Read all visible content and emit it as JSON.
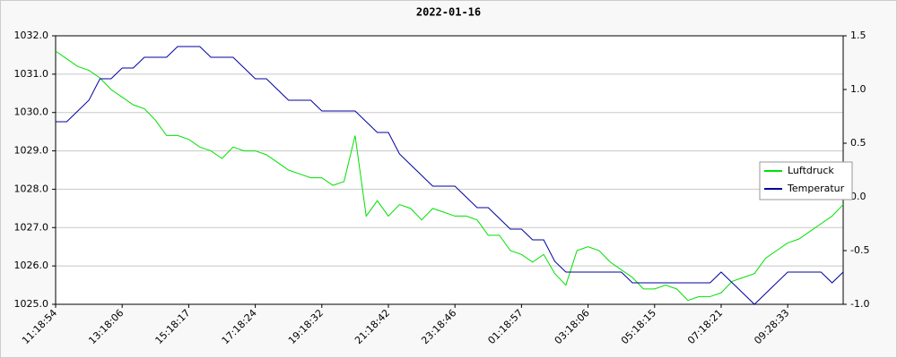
{
  "chart_data": {
    "type": "line",
    "title": "2022-01-16",
    "categories": [
      "11:18:54",
      null,
      null,
      null,
      null,
      null,
      "13:18:06",
      null,
      null,
      null,
      null,
      null,
      "15:18:17",
      null,
      null,
      null,
      null,
      null,
      "17:18:24",
      null,
      null,
      null,
      null,
      null,
      "19:18:32",
      null,
      null,
      null,
      null,
      null,
      "21:18:42",
      null,
      null,
      null,
      null,
      null,
      "23:18:46",
      null,
      null,
      null,
      null,
      null,
      "01:18:57",
      null,
      null,
      null,
      null,
      null,
      "03:18:06",
      null,
      null,
      null,
      null,
      null,
      "05:18:15",
      null,
      null,
      null,
      null,
      null,
      "07:18:21",
      null,
      null,
      null,
      null,
      null,
      "09:28:33",
      null,
      null,
      null,
      null,
      null
    ],
    "series": [
      {
        "name": "Luftdruck",
        "color": "#00e000",
        "values": [
          1031.6,
          1031.4,
          1031.2,
          1031.1,
          1030.9,
          1030.6,
          1030.4,
          1030.2,
          1030.1,
          1029.8,
          1029.4,
          1029.4,
          1029.3,
          1029.1,
          1029.0,
          1028.8,
          1029.1,
          1029.0,
          1029.0,
          1028.9,
          1028.7,
          1028.5,
          1028.4,
          1028.3,
          1028.3,
          1028.1,
          1028.2,
          1029.4,
          1027.3,
          1027.7,
          1027.3,
          1027.6,
          1027.5,
          1027.2,
          1027.5,
          1027.4,
          1027.3,
          1027.3,
          1027.2,
          1026.8,
          1026.8,
          1026.4,
          1026.3,
          1026.1,
          1026.3,
          1025.8,
          1025.5,
          1026.4,
          1026.5,
          1026.4,
          1026.1,
          1025.9,
          1025.7,
          1025.4,
          1025.4,
          1025.5,
          1025.4,
          1025.1,
          1025.2,
          1025.2,
          1025.3,
          1025.6,
          1025.7,
          1025.8,
          1026.2,
          1026.4,
          1026.6,
          1026.7,
          1026.9,
          1027.1,
          1027.3,
          1027.6
        ]
      },
      {
        "name": "Temperatur",
        "color": "#0000a0",
        "axis": "y2",
        "values": [
          0.7,
          0.7,
          0.8,
          0.9,
          1.1,
          1.1,
          1.2,
          1.2,
          1.3,
          1.3,
          1.3,
          1.4,
          1.4,
          1.4,
          1.3,
          1.3,
          1.3,
          1.2,
          1.1,
          1.1,
          1.0,
          0.9,
          0.9,
          0.9,
          0.8,
          0.8,
          0.8,
          0.8,
          0.7,
          0.6,
          0.6,
          0.4,
          0.3,
          0.2,
          0.1,
          0.1,
          0.1,
          0.0,
          -0.1,
          -0.1,
          -0.2,
          -0.3,
          -0.3,
          -0.4,
          -0.4,
          -0.6,
          -0.7,
          -0.7,
          -0.7,
          -0.7,
          -0.7,
          -0.7,
          -0.8,
          -0.8,
          -0.8,
          -0.8,
          -0.8,
          -0.8,
          -0.8,
          -0.8,
          -0.7,
          -0.8,
          -0.9,
          -1.0,
          -0.9,
          -0.8,
          -0.7,
          -0.7,
          -0.7,
          -0.7,
          -0.8,
          -0.7
        ]
      }
    ],
    "ylim": [
      1025,
      1032
    ],
    "yticks": [
      {
        "value": 1025,
        "label": "1025.0"
      },
      {
        "value": 1026,
        "label": "1026.0"
      },
      {
        "value": 1027,
        "label": "1027.0"
      },
      {
        "value": 1028,
        "label": "1028.0"
      },
      {
        "value": 1029,
        "label": "1029.0"
      },
      {
        "value": 1030,
        "label": "1030.0"
      },
      {
        "value": 1031,
        "label": "1031.0"
      },
      {
        "value": 1032,
        "label": "1032.0"
      }
    ],
    "y2lim": [
      -1,
      1.5
    ],
    "y2ticks": [
      {
        "value": -1,
        "label": "-1.0"
      },
      -0.5,
      {
        "value": 0,
        "label": "0.0"
      },
      0.5,
      {
        "value": 1,
        "label": "1.0"
      },
      1.5
    ],
    "grid": true,
    "legend": "right"
  }
}
